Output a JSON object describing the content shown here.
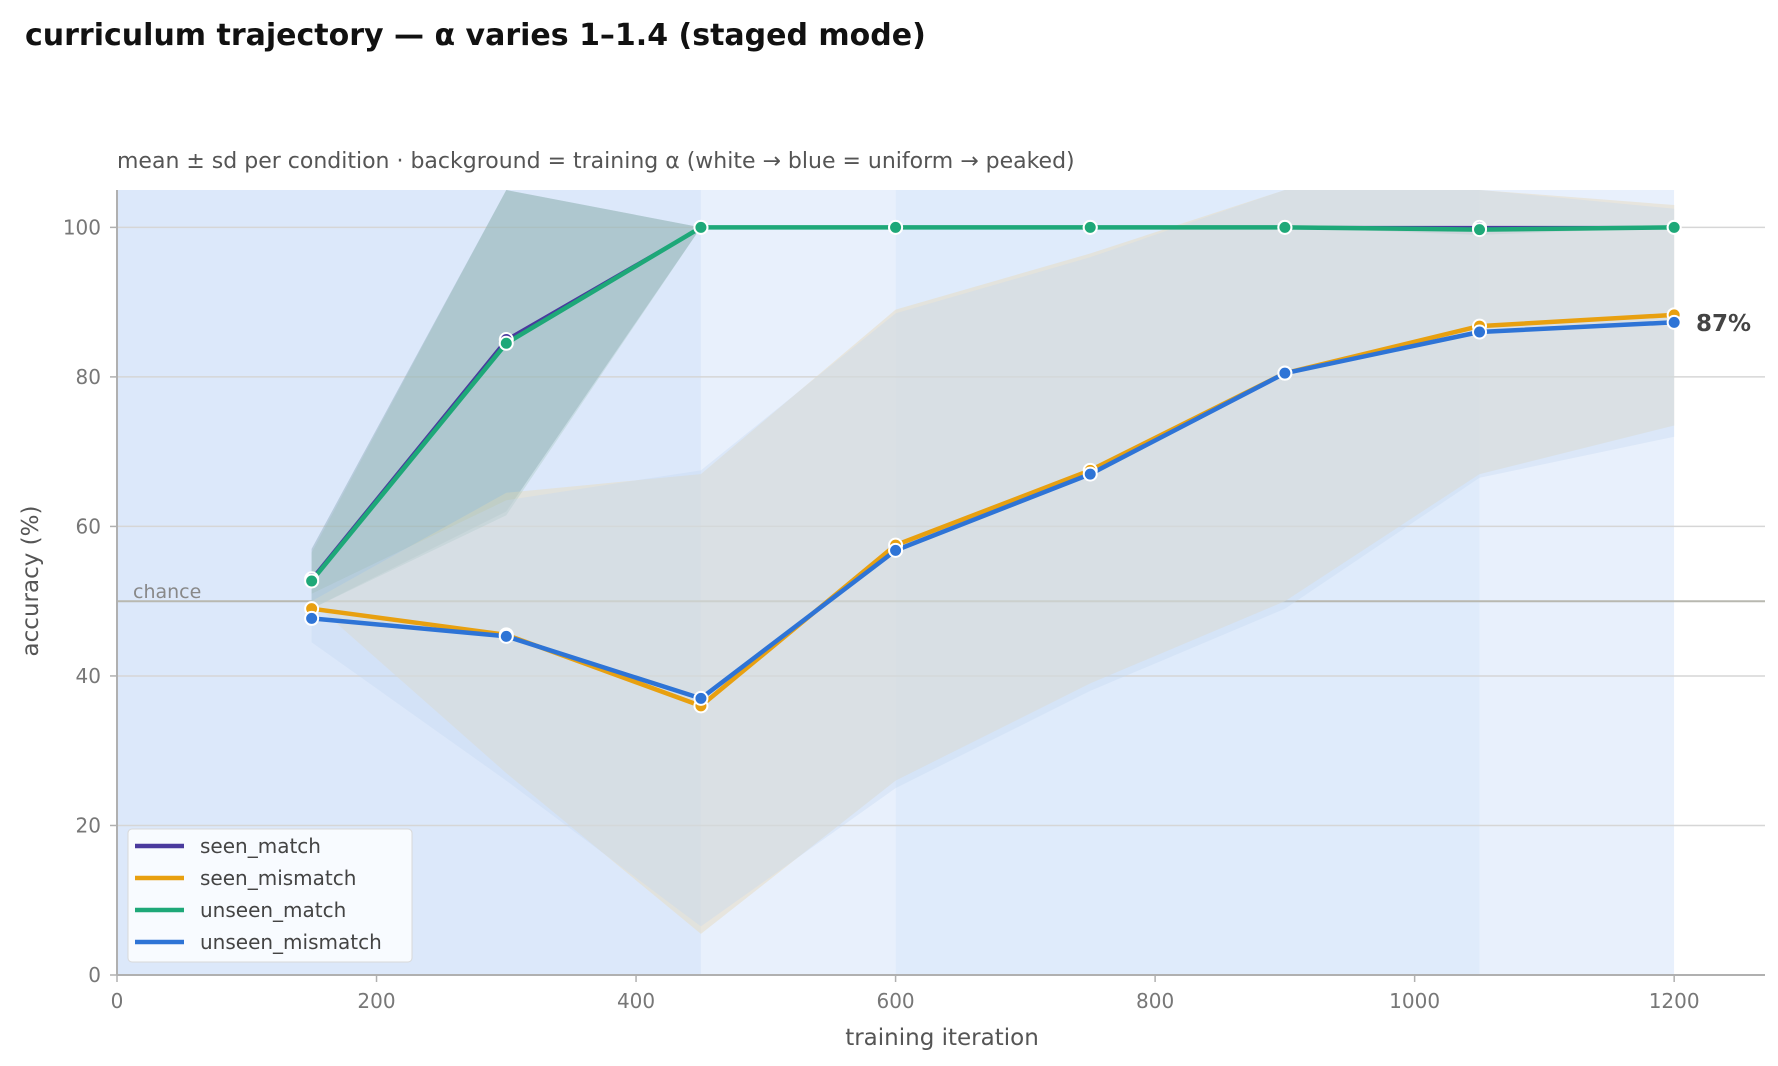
{
  "chart_data": {
    "type": "line",
    "title": "curriculum trajectory — α varies 1–1.4 (staged mode)",
    "subtitle": "mean ± sd per condition · background = training α (white → blue = uniform → peaked)",
    "xlabel": "training iteration",
    "ylabel": "accuracy (%)",
    "xlim": [
      0,
      1270
    ],
    "ylim": [
      0,
      105
    ],
    "xticks": [
      0,
      200,
      400,
      600,
      800,
      1000,
      1200
    ],
    "yticks": [
      0,
      20,
      40,
      60,
      80,
      100
    ],
    "grid": "horizontal",
    "legend_position": "bottom-left",
    "chance": {
      "value": 50,
      "label": "chance"
    },
    "final_label": "87%",
    "x": [
      150,
      300,
      450,
      600,
      750,
      900,
      1050,
      1200
    ],
    "background_bands": [
      {
        "x0": 0,
        "x1": 450,
        "color": "#dce8fa"
      },
      {
        "x0": 450,
        "x1": 600,
        "color": "#e8f0fc"
      },
      {
        "x0": 600,
        "x1": 1050,
        "color": "#dfebfb"
      },
      {
        "x0": 1050,
        "x1": 1200,
        "color": "#e8f0fc"
      },
      {
        "x0": 1200,
        "x1": 1270,
        "color": "#ffffff"
      }
    ],
    "series": [
      {
        "name": "seen_match",
        "color": "#4a3a9e",
        "values": [
          53,
          85,
          100,
          100,
          100,
          100,
          100,
          100
        ],
        "sd_low": [
          49,
          62,
          100,
          100,
          100,
          100,
          99,
          100
        ],
        "sd_high": [
          57,
          108,
          100,
          100,
          100,
          100,
          100,
          100
        ]
      },
      {
        "name": "seen_mismatch",
        "color": "#e8a010",
        "values": [
          49,
          45.5,
          36,
          57.5,
          67.5,
          80.5,
          86.8,
          88.3
        ],
        "sd_low": [
          50,
          27,
          5.5,
          26,
          39,
          50,
          67,
          73.5
        ],
        "sd_high": [
          50,
          64.5,
          67,
          89,
          96.5,
          108,
          106,
          103
        ]
      },
      {
        "name": "unseen_match",
        "color": "#1ea878",
        "values": [
          52.7,
          84.5,
          100,
          100,
          100,
          100,
          99.7,
          100
        ],
        "sd_low": [
          49,
          61.5,
          100,
          100,
          100,
          100,
          99.5,
          100
        ],
        "sd_high": [
          56.5,
          108,
          100,
          100,
          100,
          100,
          100,
          100
        ]
      },
      {
        "name": "unseen_mismatch",
        "color": "#2e74d6",
        "values": [
          47.7,
          45.3,
          37,
          56.8,
          67,
          80.5,
          86,
          87.3
        ],
        "sd_low": [
          44.5,
          26,
          6.5,
          25,
          38,
          49,
          66.5,
          72
        ],
        "sd_high": [
          51,
          63.5,
          67.5,
          88.5,
          96,
          108,
          105,
          102.5
        ]
      }
    ]
  }
}
